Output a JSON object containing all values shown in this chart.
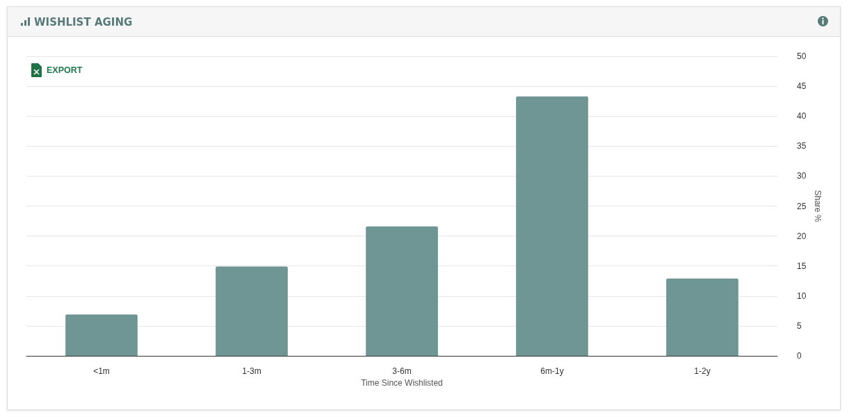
{
  "chart_data": {
    "type": "bar",
    "title": "WISHLIST AGING",
    "xlabel": "Time Since Wishlisted",
    "ylabel": "Share %",
    "annotations": [
      "EXPORT"
    ],
    "categories": [
      "<1m",
      "1-3m",
      "3-6m",
      "6m-1y",
      "1-2y"
    ],
    "values": [
      6.9,
      14.9,
      21.6,
      43.3,
      12.9
    ],
    "color": "#6f9594",
    "ylim": [
      0,
      50
    ],
    "yticks": [
      0,
      5,
      10,
      15,
      20,
      25,
      30,
      35,
      40,
      45,
      50
    ],
    "grid": "y"
  }
}
